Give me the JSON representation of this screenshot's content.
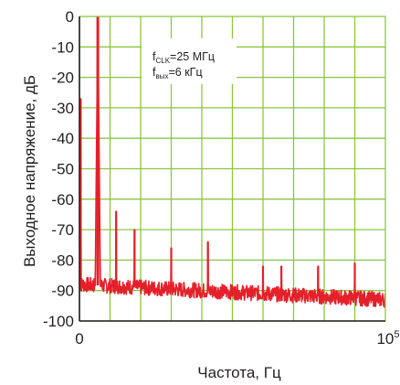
{
  "chart_data": {
    "type": "line",
    "title": "",
    "xlabel": "Частота, Гц",
    "ylabel": "Выходное напряжение, дБ",
    "xlim": [
      0,
      100000
    ],
    "ylim": [
      -100,
      0
    ],
    "x_tick_labels": [
      {
        "value": 0,
        "base": "0",
        "exp": ""
      },
      {
        "value": 100000,
        "base": "10",
        "exp": "5"
      }
    ],
    "y_ticks": [
      0,
      -10,
      -20,
      -30,
      -40,
      -50,
      -60,
      -70,
      -80,
      -90,
      -100
    ],
    "grid": true,
    "series": [
      {
        "color": "#e4202a",
        "noise_floor_db": -90,
        "x": [
          0,
          400,
          5000,
          6000,
          7000,
          12000,
          18000,
          24000,
          30000,
          42000,
          60000,
          66000,
          78000,
          90000,
          100000
        ],
        "y": [
          -90,
          -27,
          -90,
          0,
          -90,
          -64,
          -70,
          -76,
          -76,
          -74,
          -82,
          -82,
          -82,
          -81,
          -94
        ],
        "peaks": [
          {
            "x": 400,
            "y": -27
          },
          {
            "x": 6000,
            "y": 0
          },
          {
            "x": 12000,
            "y": -64
          },
          {
            "x": 18000,
            "y": -70
          },
          {
            "x": 30000,
            "y": -76
          },
          {
            "x": 42000,
            "y": -74
          },
          {
            "x": 60000,
            "y": -82
          },
          {
            "x": 66000,
            "y": -82
          },
          {
            "x": 78000,
            "y": -82
          },
          {
            "x": 90000,
            "y": -81
          }
        ]
      }
    ],
    "annotation": {
      "line1": {
        "f": "f",
        "sub": "CLK",
        "text": "=25 МГц"
      },
      "line2": {
        "f": "f",
        "sub": "вых",
        "text": "=6 кГц"
      }
    }
  }
}
